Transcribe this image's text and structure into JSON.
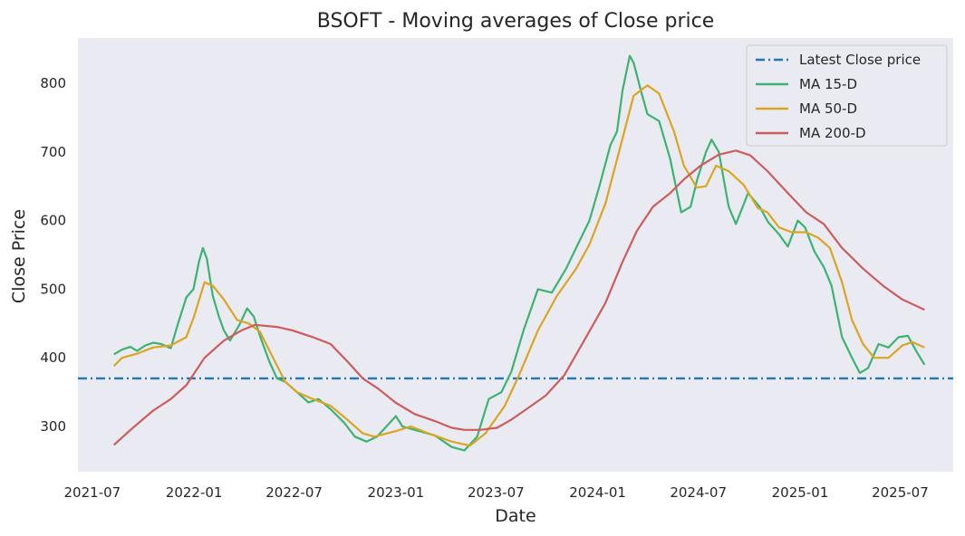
{
  "chart_data": {
    "type": "line",
    "title": "BSOFT - Moving averages of Close price",
    "xlabel": "Date",
    "ylabel": "Close Price",
    "xlim": [
      "2021-06-05",
      "2025-10-05"
    ],
    "ylim": [
      234,
      866
    ],
    "x_ticks": [
      "2021-07",
      "2022-01",
      "2022-07",
      "2023-01",
      "2023-07",
      "2024-01",
      "2024-07",
      "2025-01",
      "2025-07"
    ],
    "y_ticks": [
      300,
      400,
      500,
      600,
      700,
      800
    ],
    "grid": false,
    "legend_position": "top-right",
    "hline": {
      "name": "Latest Close price",
      "value": 370,
      "color": "#1f77b4",
      "style": "dash-dot"
    },
    "series": [
      {
        "name": "MA 15-D",
        "color": "#3cb371",
        "points": [
          [
            "2021-08-09",
            405
          ],
          [
            "2021-08-24",
            412
          ],
          [
            "2021-09-08",
            416
          ],
          [
            "2021-09-20",
            410
          ],
          [
            "2021-10-05",
            418
          ],
          [
            "2021-10-19",
            422
          ],
          [
            "2021-11-03",
            420
          ],
          [
            "2021-11-20",
            414
          ],
          [
            "2021-12-03",
            450
          ],
          [
            "2021-12-18",
            488
          ],
          [
            "2021-12-31",
            500
          ],
          [
            "2022-01-10",
            540
          ],
          [
            "2022-01-17",
            560
          ],
          [
            "2022-01-24",
            545
          ],
          [
            "2022-02-04",
            490
          ],
          [
            "2022-02-15",
            460
          ],
          [
            "2022-02-24",
            440
          ],
          [
            "2022-03-07",
            425
          ],
          [
            "2022-03-24",
            448
          ],
          [
            "2022-04-07",
            472
          ],
          [
            "2022-04-19",
            460
          ],
          [
            "2022-05-01",
            430
          ],
          [
            "2022-05-17",
            395
          ],
          [
            "2022-05-31",
            370
          ],
          [
            "2022-06-15",
            365
          ],
          [
            "2022-07-06",
            350
          ],
          [
            "2022-07-27",
            335
          ],
          [
            "2022-08-14",
            340
          ],
          [
            "2022-09-05",
            325
          ],
          [
            "2022-09-30",
            305
          ],
          [
            "2022-10-19",
            285
          ],
          [
            "2022-11-09",
            278
          ],
          [
            "2022-11-28",
            285
          ],
          [
            "2022-12-15",
            300
          ],
          [
            "2023-01-01",
            315
          ],
          [
            "2023-01-13",
            300
          ],
          [
            "2023-02-04",
            295
          ],
          [
            "2023-03-12",
            287
          ],
          [
            "2023-04-12",
            270
          ],
          [
            "2023-05-05",
            265
          ],
          [
            "2023-05-28",
            285
          ],
          [
            "2023-06-18",
            340
          ],
          [
            "2023-07-11",
            350
          ],
          [
            "2023-07-29",
            380
          ],
          [
            "2023-08-20",
            440
          ],
          [
            "2023-09-15",
            500
          ],
          [
            "2023-10-10",
            495
          ],
          [
            "2023-11-05",
            530
          ],
          [
            "2023-11-23",
            560
          ],
          [
            "2023-12-17",
            600
          ],
          [
            "2024-01-04",
            650
          ],
          [
            "2024-01-24",
            710
          ],
          [
            "2024-02-05",
            730
          ],
          [
            "2024-02-15",
            790
          ],
          [
            "2024-02-28",
            840
          ],
          [
            "2024-03-06",
            830
          ],
          [
            "2024-03-19",
            790
          ],
          [
            "2024-03-31",
            755
          ],
          [
            "2024-04-21",
            745
          ],
          [
            "2024-05-11",
            690
          ],
          [
            "2024-05-31",
            612
          ],
          [
            "2024-06-17",
            620
          ],
          [
            "2024-06-29",
            660
          ],
          [
            "2024-07-15",
            700
          ],
          [
            "2024-07-25",
            718
          ],
          [
            "2024-08-07",
            700
          ],
          [
            "2024-08-25",
            620
          ],
          [
            "2024-09-07",
            595
          ],
          [
            "2024-09-29",
            640
          ],
          [
            "2024-10-20",
            620
          ],
          [
            "2024-11-04",
            598
          ],
          [
            "2024-11-24",
            580
          ],
          [
            "2024-12-10",
            562
          ],
          [
            "2024-12-28",
            600
          ],
          [
            "2025-01-10",
            590
          ],
          [
            "2025-01-27",
            555
          ],
          [
            "2025-02-13",
            532
          ],
          [
            "2025-02-27",
            505
          ],
          [
            "2025-03-18",
            430
          ],
          [
            "2025-04-05",
            400
          ],
          [
            "2025-04-19",
            378
          ],
          [
            "2025-05-04",
            385
          ],
          [
            "2025-05-23",
            420
          ],
          [
            "2025-06-10",
            415
          ],
          [
            "2025-06-28",
            430
          ],
          [
            "2025-07-15",
            432
          ],
          [
            "2025-07-30",
            410
          ],
          [
            "2025-08-14",
            390
          ]
        ]
      },
      {
        "name": "MA 50-D",
        "color": "#daa520",
        "points": [
          [
            "2021-08-09",
            388
          ],
          [
            "2021-08-24",
            400
          ],
          [
            "2021-09-20",
            406
          ],
          [
            "2021-10-19",
            415
          ],
          [
            "2021-11-20",
            418
          ],
          [
            "2021-12-18",
            430
          ],
          [
            "2022-01-01",
            460
          ],
          [
            "2022-01-20",
            510
          ],
          [
            "2022-02-04",
            505
          ],
          [
            "2022-02-24",
            485
          ],
          [
            "2022-03-20",
            455
          ],
          [
            "2022-04-10",
            450
          ],
          [
            "2022-04-30",
            438
          ],
          [
            "2022-05-24",
            400
          ],
          [
            "2022-06-15",
            365
          ],
          [
            "2022-07-06",
            350
          ],
          [
            "2022-08-04",
            340
          ],
          [
            "2022-09-05",
            330
          ],
          [
            "2022-10-05",
            310
          ],
          [
            "2022-11-02",
            290
          ],
          [
            "2022-11-23",
            285
          ],
          [
            "2022-12-31",
            293
          ],
          [
            "2023-01-28",
            300
          ],
          [
            "2023-03-01",
            290
          ],
          [
            "2023-04-12",
            278
          ],
          [
            "2023-05-15",
            272
          ],
          [
            "2023-06-12",
            290
          ],
          [
            "2023-07-17",
            330
          ],
          [
            "2023-08-12",
            375
          ],
          [
            "2023-09-15",
            440
          ],
          [
            "2023-10-19",
            490
          ],
          [
            "2023-11-23",
            530
          ],
          [
            "2023-12-17",
            565
          ],
          [
            "2024-01-15",
            625
          ],
          [
            "2024-02-15",
            720
          ],
          [
            "2024-03-06",
            782
          ],
          [
            "2024-03-31",
            797
          ],
          [
            "2024-04-21",
            785
          ],
          [
            "2024-05-18",
            730
          ],
          [
            "2024-06-05",
            680
          ],
          [
            "2024-06-28",
            648
          ],
          [
            "2024-07-15",
            650
          ],
          [
            "2024-08-02",
            680
          ],
          [
            "2024-08-25",
            672
          ],
          [
            "2024-09-21",
            652
          ],
          [
            "2024-10-17",
            618
          ],
          [
            "2024-11-03",
            612
          ],
          [
            "2024-11-24",
            590
          ],
          [
            "2024-12-17",
            583
          ],
          [
            "2025-01-12",
            583
          ],
          [
            "2025-02-03",
            575
          ],
          [
            "2025-02-24",
            560
          ],
          [
            "2025-03-18",
            510
          ],
          [
            "2025-04-05",
            455
          ],
          [
            "2025-04-25",
            420
          ],
          [
            "2025-05-15",
            400
          ],
          [
            "2025-06-10",
            400
          ],
          [
            "2025-07-05",
            418
          ],
          [
            "2025-07-23",
            423
          ],
          [
            "2025-08-14",
            415
          ]
        ]
      },
      {
        "name": "MA 200-D",
        "color": "#cd5c5c",
        "points": [
          [
            "2021-08-09",
            273
          ],
          [
            "2021-09-08",
            295
          ],
          [
            "2021-10-19",
            323
          ],
          [
            "2021-11-20",
            340
          ],
          [
            "2021-12-18",
            360
          ],
          [
            "2022-01-20",
            400
          ],
          [
            "2022-02-24",
            425
          ],
          [
            "2022-03-28",
            440
          ],
          [
            "2022-04-21",
            448
          ],
          [
            "2022-05-31",
            445
          ],
          [
            "2022-06-28",
            440
          ],
          [
            "2022-08-04",
            430
          ],
          [
            "2022-09-05",
            420
          ],
          [
            "2022-10-05",
            395
          ],
          [
            "2022-11-02",
            370
          ],
          [
            "2022-11-30",
            355
          ],
          [
            "2022-12-31",
            335
          ],
          [
            "2023-02-04",
            318
          ],
          [
            "2023-03-12",
            308
          ],
          [
            "2023-04-12",
            298
          ],
          [
            "2023-05-05",
            295
          ],
          [
            "2023-06-02",
            295
          ],
          [
            "2023-07-03",
            298
          ],
          [
            "2023-07-29",
            310
          ],
          [
            "2023-08-25",
            325
          ],
          [
            "2023-09-29",
            345
          ],
          [
            "2023-11-02",
            375
          ],
          [
            "2023-12-11",
            430
          ],
          [
            "2024-01-15",
            480
          ],
          [
            "2024-02-15",
            540
          ],
          [
            "2024-03-12",
            585
          ],
          [
            "2024-04-10",
            620
          ],
          [
            "2024-05-11",
            640
          ],
          [
            "2024-06-05",
            660
          ],
          [
            "2024-07-05",
            680
          ],
          [
            "2024-08-07",
            696
          ],
          [
            "2024-09-07",
            702
          ],
          [
            "2024-10-03",
            695
          ],
          [
            "2024-11-03",
            672
          ],
          [
            "2024-12-10",
            640
          ],
          [
            "2025-01-12",
            612
          ],
          [
            "2025-02-13",
            595
          ],
          [
            "2025-03-18",
            560
          ],
          [
            "2025-04-25",
            530
          ],
          [
            "2025-05-31",
            505
          ],
          [
            "2025-07-05",
            485
          ],
          [
            "2025-08-14",
            470
          ]
        ]
      }
    ]
  }
}
